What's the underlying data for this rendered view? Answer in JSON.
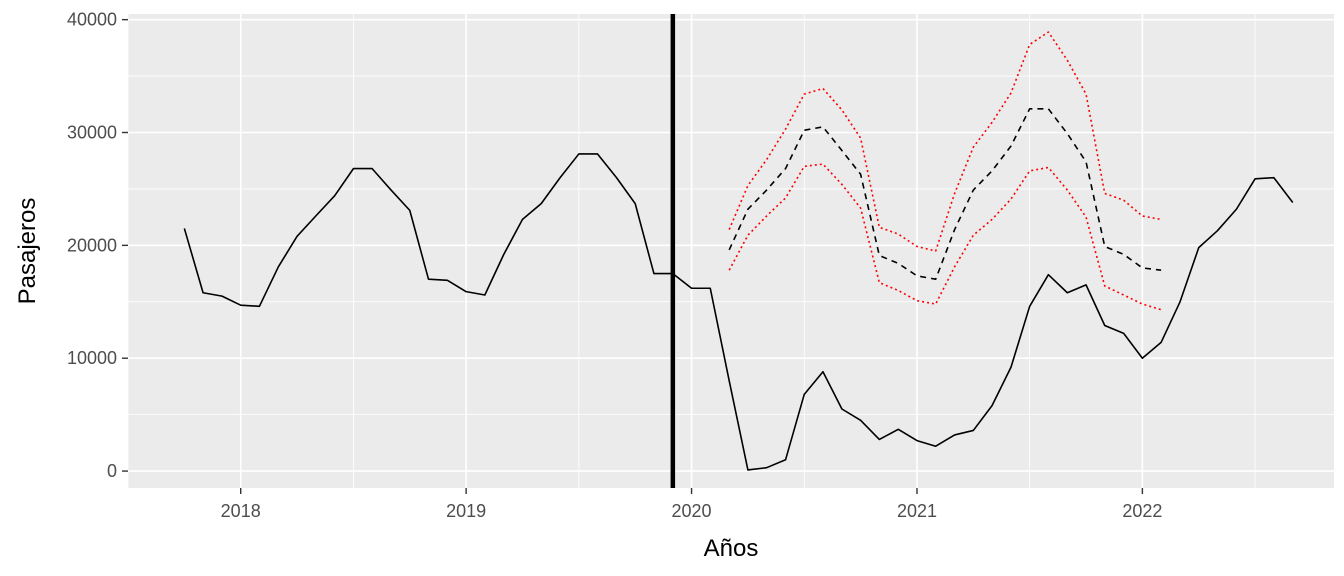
{
  "chart_data": {
    "type": "line",
    "title": "",
    "xlabel": "Años",
    "ylabel": "Pasajeros",
    "xlim": [
      2017.5,
      2022.85
    ],
    "ylim": [
      -1500,
      40500
    ],
    "x_ticks": [
      {
        "value": 2018,
        "label": "2018"
      },
      {
        "value": 2019,
        "label": "2019"
      },
      {
        "value": 2020,
        "label": "2020"
      },
      {
        "value": 2021,
        "label": "2021"
      },
      {
        "value": 2022,
        "label": "2022"
      }
    ],
    "y_ticks": [
      {
        "value": 0,
        "label": "0"
      },
      {
        "value": 10000,
        "label": "10000"
      },
      {
        "value": 20000,
        "label": "20000"
      },
      {
        "value": 30000,
        "label": "30000"
      },
      {
        "value": 40000,
        "label": "40000"
      }
    ],
    "grid": true,
    "vline": {
      "x": 2019.917,
      "color": "#000000"
    },
    "series": [
      {
        "style": "solid",
        "color": "#000000",
        "x": [
          2017.75,
          2017.833,
          2017.917,
          2018.0,
          2018.083,
          2018.167,
          2018.25,
          2018.333,
          2018.417,
          2018.5,
          2018.583,
          2018.667,
          2018.75,
          2018.833,
          2018.917,
          2019.0,
          2019.083,
          2019.167,
          2019.25,
          2019.333,
          2019.417,
          2019.5,
          2019.583,
          2019.667,
          2019.75,
          2019.833,
          2019.917,
          2020.0,
          2020.083,
          2020.167,
          2020.25,
          2020.333,
          2020.417,
          2020.5,
          2020.583,
          2020.667,
          2020.75,
          2020.833,
          2020.917,
          2021.0,
          2021.083,
          2021.167,
          2021.25,
          2021.333,
          2021.417,
          2021.5,
          2021.583,
          2021.667,
          2021.75,
          2021.833,
          2021.917,
          2022.0,
          2022.083,
          2022.167,
          2022.25,
          2022.333,
          2022.417,
          2022.5,
          2022.583,
          2022.667
        ],
        "y": [
          21500,
          15800,
          15500,
          14700,
          14600,
          18100,
          20800,
          22600,
          24400,
          26800,
          26800,
          24900,
          23100,
          17000,
          16900,
          15900,
          15600,
          19200,
          22300,
          23700,
          26000,
          28100,
          28100,
          26000,
          23700,
          17500,
          17500,
          16200,
          16200,
          8000,
          100,
          300,
          1000,
          6800,
          8800,
          5500,
          4500,
          2800,
          3700,
          2700,
          2200,
          3200,
          3600,
          5800,
          9200,
          14600,
          17400,
          15800,
          16500,
          12900,
          12200,
          10000,
          11400,
          15000,
          19800,
          21300,
          23200,
          25900,
          26000,
          23800
        ]
      },
      {
        "style": "dashed",
        "color": "#000000",
        "x": [
          2020.167,
          2020.25,
          2020.333,
          2020.417,
          2020.5,
          2020.583,
          2020.667,
          2020.75,
          2020.833,
          2020.917,
          2021.0,
          2021.083,
          2021.167,
          2021.25,
          2021.333,
          2021.417,
          2021.5,
          2021.583,
          2021.667,
          2021.75,
          2021.833,
          2021.917,
          2022.0,
          2022.083
        ],
        "y": [
          19600,
          23200,
          24900,
          26800,
          30200,
          30500,
          28400,
          26300,
          19100,
          18400,
          17300,
          17000,
          21400,
          24900,
          26600,
          28800,
          32100,
          32100,
          29900,
          27400,
          19900,
          19200,
          18000,
          17800
        ]
      },
      {
        "style": "dotted",
        "color": "#ff0000",
        "x": [
          2020.167,
          2020.25,
          2020.333,
          2020.417,
          2020.5,
          2020.583,
          2020.667,
          2020.75,
          2020.833,
          2020.917,
          2021.0,
          2021.083,
          2021.167,
          2021.25,
          2021.333,
          2021.417,
          2021.5,
          2021.583,
          2021.667,
          2021.75,
          2021.833,
          2021.917,
          2022.0,
          2022.083
        ],
        "y": [
          21400,
          25300,
          27600,
          30300,
          33400,
          33900,
          32000,
          29500,
          21600,
          21000,
          19900,
          19500,
          24600,
          28700,
          30900,
          33500,
          37800,
          38900,
          36400,
          33400,
          24600,
          24000,
          22600,
          22300
        ]
      },
      {
        "style": "dotted",
        "color": "#ff0000",
        "x": [
          2020.167,
          2020.25,
          2020.333,
          2020.417,
          2020.5,
          2020.583,
          2020.667,
          2020.75,
          2020.833,
          2020.917,
          2021.0,
          2021.083,
          2021.167,
          2021.25,
          2021.333,
          2021.417,
          2021.5,
          2021.583,
          2021.667,
          2021.75,
          2021.833,
          2021.917,
          2022.0,
          2022.083
        ],
        "y": [
          17800,
          20900,
          22600,
          24200,
          27000,
          27200,
          25400,
          23300,
          16700,
          16000,
          15100,
          14800,
          18100,
          20900,
          22300,
          24100,
          26600,
          26900,
          24900,
          22500,
          16400,
          15600,
          14800,
          14300
        ]
      }
    ]
  }
}
